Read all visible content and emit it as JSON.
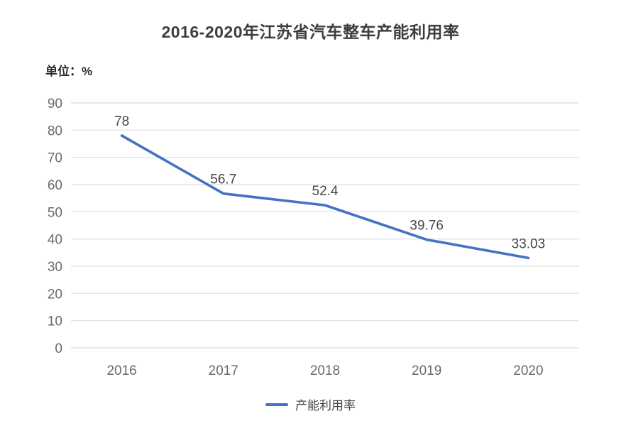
{
  "chart_data": {
    "type": "line",
    "title": "2016-2020年江苏省汽车整车产能利用率",
    "unit_label": "单位：%",
    "categories": [
      "2016",
      "2017",
      "2018",
      "2019",
      "2020"
    ],
    "series": [
      {
        "name": "产能利用率",
        "values": [
          78,
          56.7,
          52.4,
          39.76,
          33.03
        ],
        "data_labels": [
          "78",
          "56.7",
          "52.4",
          "39.76",
          "33.03"
        ]
      }
    ],
    "y_ticks": [
      0,
      10,
      20,
      30,
      40,
      50,
      60,
      70,
      80,
      90
    ],
    "ylim": [
      0,
      90
    ],
    "grid": true,
    "legend_position": "bottom",
    "colors": {
      "line": "#4472c4",
      "grid": "#e4e4e4",
      "tick_text": "#6a6a6a",
      "data_label_text": "#474747",
      "title_text": "#3d3d3d",
      "background": "#ffffff"
    }
  }
}
